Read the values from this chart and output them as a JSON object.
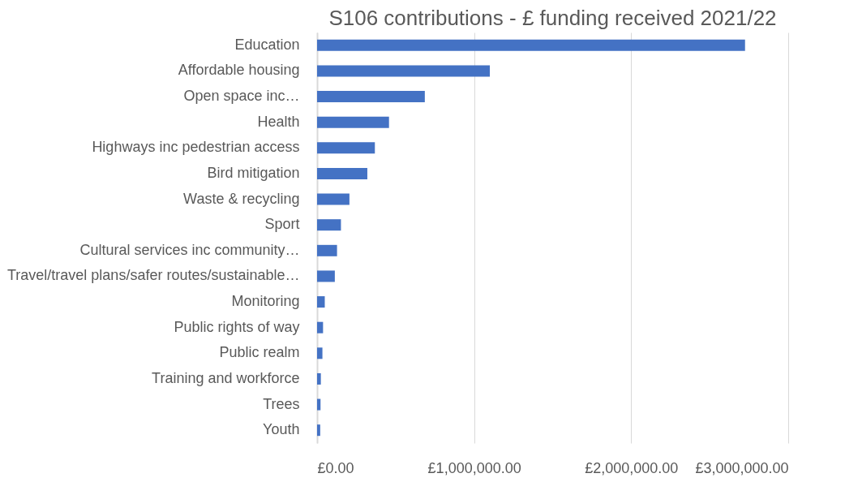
{
  "chart_data": {
    "type": "bar",
    "orientation": "horizontal",
    "title": "S106 contributions - £ funding received 2021/22",
    "categories": [
      "Education",
      "Affordable housing",
      "Open space inc…",
      "Health",
      "Highways inc pedestrian access",
      "Bird mitigation",
      "Waste & recycling",
      "Sport",
      "Cultural services inc community…",
      "Travel/travel plans/safer routes/sustainable…",
      "Monitoring",
      "Public rights of way",
      "Public realm",
      "Training and workforce",
      "Trees",
      "Youth"
    ],
    "values": [
      2725000,
      1100000,
      686000,
      458000,
      368000,
      320000,
      206000,
      152000,
      127000,
      113000,
      49000,
      38000,
      34000,
      24000,
      22000,
      20000
    ],
    "color": "#4472c4",
    "xlim": [
      0,
      3000000
    ],
    "xticks": [
      {
        "value": 0,
        "label": "£0.00"
      },
      {
        "value": 1000000,
        "label": "£1,000,000.00"
      },
      {
        "value": 2000000,
        "label": "£2,000,000.00"
      },
      {
        "value": 3000000,
        "label": "£3,000,000.00"
      }
    ],
    "grid": "x"
  }
}
